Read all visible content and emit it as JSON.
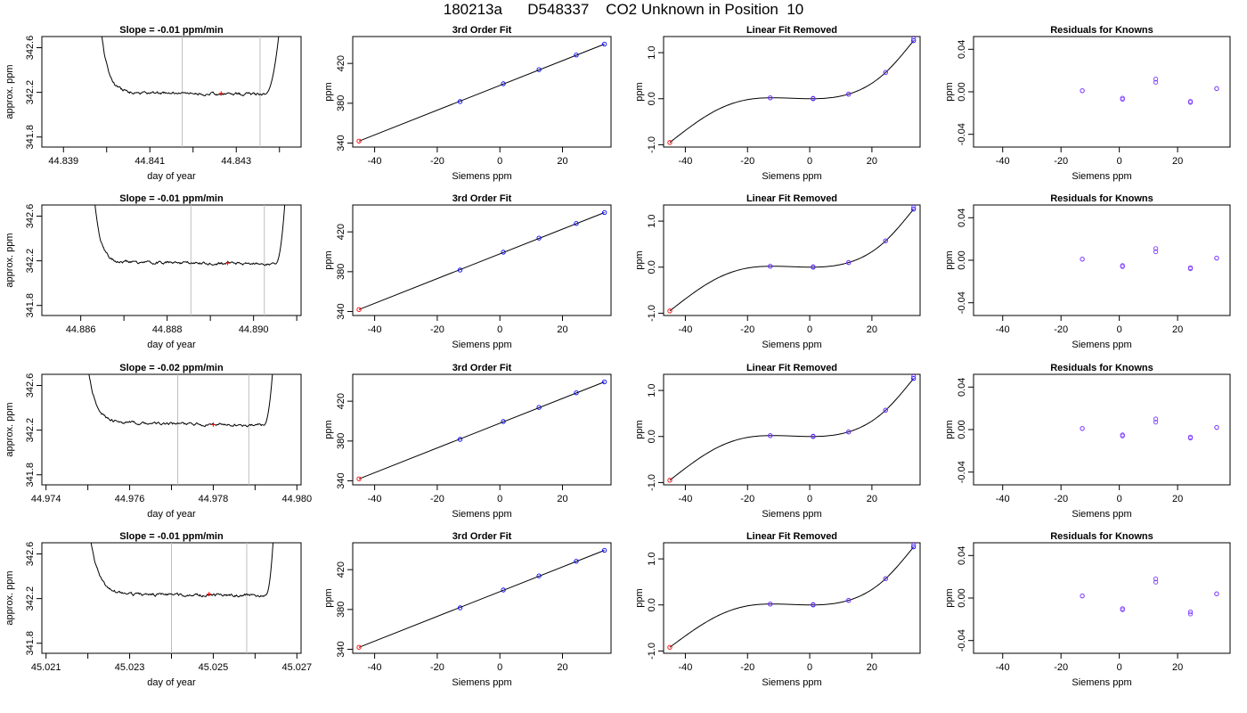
{
  "page_title": "180213a      D548337    CO2 Unknown in Position  10",
  "colors": {
    "trace": "#000000",
    "known_points": "#0000ff",
    "unknown_point": "#ff0000",
    "residual_points": "#7f3fff",
    "window_lines": "#bebebe"
  },
  "chart_data": [
    {
      "type": "line",
      "panel": "time-series",
      "row": 1,
      "title": "Slope =  -0.01  ppm/min",
      "xlabel": "day of year",
      "ylabel": "approx. ppm",
      "xlim": [
        44.8385,
        44.8445
      ],
      "ylim": [
        341.71,
        342.7
      ],
      "xticks": [
        44.839,
        44.841,
        44.843
      ],
      "xticks_minor": [
        44.84,
        44.842,
        44.844
      ],
      "xtick_decimals": 3,
      "yticks": [
        341.8,
        342.2,
        342.6
      ],
      "ytick_decimals": 1,
      "grid": false,
      "series": [
        {
          "start_x": 44.8398,
          "end_x": 44.8441,
          "baseline": 342.2,
          "start_level": 343.1,
          "decay_x": 44.8403,
          "end_level": 342.18,
          "rise_start_x": 44.84365,
          "end_peak": 343.2
        }
      ],
      "window": [
        44.84175,
        44.84355
      ],
      "unknown_point": {
        "x": 44.84265,
        "y": 342.19
      }
    },
    {
      "type": "scatter",
      "panel": "fit",
      "row": 1,
      "title": "3rd Order Fit",
      "xlabel": "Siemens ppm",
      "ylabel": "ppm",
      "xlim": [
        -47.0,
        35.5
      ],
      "ylim": [
        336.0,
        447.0
      ],
      "xticks": [
        -40,
        -20,
        0,
        20
      ],
      "yticks": [
        340,
        380,
        420
      ],
      "known_x": [
        -12.7,
        1.1,
        12.5,
        24.4,
        33.4
      ],
      "known_y": [
        381.7,
        399.6,
        413.8,
        428.4,
        439.4
      ],
      "unknown_point": {
        "x": -45.0,
        "y": 342.0
      },
      "fit_line": {
        "x": [
          -45.0,
          33.4
        ],
        "y": [
          342.0,
          439.4
        ]
      }
    },
    {
      "type": "scatter",
      "panel": "linear-removed",
      "row": 1,
      "title": "Linear Fit Removed",
      "xlabel": "Siemens ppm",
      "ylabel": "ppm",
      "xlim": [
        -47.0,
        35.5
      ],
      "ylim": [
        -1.05,
        1.35
      ],
      "xticks": [
        -40,
        -20,
        0,
        20
      ],
      "yticks": [
        -1.0,
        0.0,
        1.0
      ],
      "ytick_decimals": 1,
      "known_x": [
        -12.7,
        1.1,
        12.5,
        24.4,
        33.4
      ],
      "known_y": [
        0.02,
        0.0,
        0.1,
        0.57,
        1.26
      ],
      "known_y_alt": [
        0.02,
        0.01,
        0.1,
        0.57,
        1.3
      ],
      "unknown_point": {
        "x": -45.0,
        "y": -0.95
      },
      "curve_knots": {
        "x": [
          -45.0,
          -30.0,
          -20.0,
          -12.7,
          1.1,
          12.5,
          24.4,
          33.4
        ],
        "y": [
          -0.95,
          -0.25,
          -0.02,
          0.02,
          0.0,
          0.1,
          0.57,
          1.26
        ]
      }
    },
    {
      "type": "scatter",
      "panel": "residuals",
      "row": 1,
      "title": "Residuals for Knowns",
      "xlabel": "Siemens ppm",
      "ylabel": "ppm",
      "xlim": [
        -50.0,
        38.0
      ],
      "ylim": [
        -0.052,
        0.052
      ],
      "xticks": [
        -40,
        -20,
        0,
        20
      ],
      "yticks": [
        -0.04,
        0.0,
        0.04
      ],
      "ytick_decimals": 2,
      "x": [
        -12.7,
        1.1,
        12.5,
        24.4,
        33.4
      ],
      "y": [
        0.001,
        -0.007,
        0.009,
        -0.01,
        0.003
      ],
      "y_alt": [
        0.001,
        -0.006,
        0.012,
        -0.009,
        0.003
      ]
    },
    {
      "type": "line",
      "panel": "time-series",
      "row": 2,
      "title": "Slope =  -0.01  ppm/min",
      "xlabel": "day of year",
      "ylabel": "approx. ppm",
      "xlim": [
        44.8851,
        44.8911
      ],
      "ylim": [
        341.71,
        342.7
      ],
      "xticks": [
        44.886,
        44.888,
        44.89
      ],
      "xticks_minor": [
        44.887,
        44.889,
        44.891
      ],
      "xtick_decimals": 3,
      "yticks": [
        341.8,
        342.2,
        342.6
      ],
      "ytick_decimals": 1,
      "grid": false,
      "series": [
        {
          "start_x": 44.88625,
          "end_x": 44.8908,
          "baseline": 342.19,
          "start_level": 343.1,
          "decay_x": 44.8867,
          "end_level": 342.17,
          "rise_start_x": 44.8905,
          "end_peak": 343.2
        }
      ],
      "window": [
        44.88855,
        44.89025
      ],
      "unknown_point": {
        "x": 44.8894,
        "y": 342.18
      }
    },
    {
      "type": "scatter",
      "panel": "fit",
      "row": 2,
      "title": "3rd Order Fit",
      "xlabel": "Siemens ppm",
      "ylabel": "ppm",
      "xlim": [
        -47.0,
        35.5
      ],
      "ylim": [
        336.0,
        447.0
      ],
      "xticks": [
        -40,
        -20,
        0,
        20
      ],
      "yticks": [
        340,
        380,
        420
      ],
      "known_x": [
        -12.7,
        1.1,
        12.5,
        24.4,
        33.4
      ],
      "known_y": [
        381.7,
        399.6,
        413.8,
        428.4,
        439.4
      ],
      "unknown_point": {
        "x": -45.0,
        "y": 342.0
      },
      "fit_line": {
        "x": [
          -45.0,
          33.4
        ],
        "y": [
          342.0,
          439.4
        ]
      }
    },
    {
      "type": "scatter",
      "panel": "linear-removed",
      "row": 2,
      "title": "Linear Fit Removed",
      "xlabel": "Siemens ppm",
      "ylabel": "ppm",
      "xlim": [
        -47.0,
        35.5
      ],
      "ylim": [
        -1.05,
        1.35
      ],
      "xticks": [
        -40,
        -20,
        0,
        20
      ],
      "yticks": [
        -1.0,
        0.0,
        1.0
      ],
      "ytick_decimals": 1,
      "known_x": [
        -12.7,
        1.1,
        12.5,
        24.4,
        33.4
      ],
      "known_y": [
        0.02,
        0.0,
        0.1,
        0.57,
        1.26
      ],
      "known_y_alt": [
        0.02,
        0.01,
        0.1,
        0.57,
        1.3
      ],
      "unknown_point": {
        "x": -45.0,
        "y": -0.95
      },
      "curve_knots": {
        "x": [
          -45.0,
          -30.0,
          -20.0,
          -12.7,
          1.1,
          12.5,
          24.4,
          33.4
        ],
        "y": [
          -0.95,
          -0.25,
          -0.02,
          0.02,
          0.0,
          0.1,
          0.57,
          1.26
        ]
      }
    },
    {
      "type": "scatter",
      "panel": "residuals",
      "row": 2,
      "title": "Residuals for Knowns",
      "xlabel": "Siemens ppm",
      "ylabel": "ppm",
      "xlim": [
        -50.0,
        38.0
      ],
      "ylim": [
        -0.052,
        0.052
      ],
      "xticks": [
        -40,
        -20,
        0,
        20
      ],
      "yticks": [
        -0.04,
        0.0,
        0.04
      ],
      "ytick_decimals": 2,
      "x": [
        -12.7,
        1.1,
        12.5,
        24.4,
        33.4
      ],
      "y": [
        0.001,
        -0.006,
        0.008,
        -0.007,
        0.002
      ],
      "y_alt": [
        0.001,
        -0.005,
        0.011,
        -0.008,
        0.002
      ]
    },
    {
      "type": "line",
      "panel": "time-series",
      "row": 3,
      "title": "Slope =  -0.02  ppm/min",
      "xlabel": "day of year",
      "ylabel": "approx. ppm",
      "xlim": [
        44.9739,
        44.9801
      ],
      "ylim": [
        341.71,
        342.7
      ],
      "xticks": [
        44.974,
        44.976,
        44.978,
        44.98
      ],
      "xticks_minor": [
        44.975,
        44.977,
        44.979
      ],
      "xtick_decimals": 3,
      "yticks": [
        341.8,
        342.2,
        342.6
      ],
      "ytick_decimals": 1,
      "grid": false,
      "series": [
        {
          "start_x": 44.9749,
          "end_x": 44.9795,
          "baseline": 342.27,
          "start_level": 343.1,
          "decay_x": 44.9755,
          "end_level": 342.24,
          "rise_start_x": 44.9792,
          "end_peak": 343.2
        }
      ],
      "window": [
        44.97715,
        44.97885
      ],
      "unknown_point": {
        "x": 44.978,
        "y": 342.25
      }
    },
    {
      "type": "scatter",
      "panel": "fit",
      "row": 3,
      "title": "3rd Order Fit",
      "xlabel": "Siemens ppm",
      "ylabel": "ppm",
      "xlim": [
        -47.0,
        35.5
      ],
      "ylim": [
        336.0,
        447.0
      ],
      "xticks": [
        -40,
        -20,
        0,
        20
      ],
      "yticks": [
        340,
        380,
        420
      ],
      "known_x": [
        -12.7,
        1.1,
        12.5,
        24.4,
        33.4
      ],
      "known_y": [
        381.7,
        399.6,
        413.8,
        428.4,
        439.4
      ],
      "unknown_point": {
        "x": -45.0,
        "y": 342.0
      },
      "fit_line": {
        "x": [
          -45.0,
          33.4
        ],
        "y": [
          342.0,
          439.4
        ]
      }
    },
    {
      "type": "scatter",
      "panel": "linear-removed",
      "row": 3,
      "title": "Linear Fit Removed",
      "xlabel": "Siemens ppm",
      "ylabel": "ppm",
      "xlim": [
        -47.0,
        35.5
      ],
      "ylim": [
        -1.05,
        1.35
      ],
      "xticks": [
        -40,
        -20,
        0,
        20
      ],
      "yticks": [
        -1.0,
        0.0,
        1.0
      ],
      "ytick_decimals": 1,
      "known_x": [
        -12.7,
        1.1,
        12.5,
        24.4,
        33.4
      ],
      "known_y": [
        0.02,
        0.0,
        0.1,
        0.57,
        1.26
      ],
      "known_y_alt": [
        0.02,
        0.01,
        0.1,
        0.57,
        1.3
      ],
      "unknown_point": {
        "x": -45.0,
        "y": -0.95
      },
      "curve_knots": {
        "x": [
          -45.0,
          -30.0,
          -20.0,
          -12.7,
          1.1,
          12.5,
          24.4,
          33.4
        ],
        "y": [
          -0.95,
          -0.25,
          -0.02,
          0.02,
          0.0,
          0.1,
          0.57,
          1.26
        ]
      }
    },
    {
      "type": "scatter",
      "panel": "residuals",
      "row": 3,
      "title": "Residuals for Knowns",
      "xlabel": "Siemens ppm",
      "ylabel": "ppm",
      "xlim": [
        -50.0,
        38.0
      ],
      "ylim": [
        -0.052,
        0.052
      ],
      "xticks": [
        -40,
        -20,
        0,
        20
      ],
      "yticks": [
        -0.04,
        0.0,
        0.04
      ],
      "ytick_decimals": 2,
      "x": [
        -12.7,
        1.1,
        12.5,
        24.4,
        33.4
      ],
      "y": [
        0.001,
        -0.006,
        0.007,
        -0.008,
        0.002
      ],
      "y_alt": [
        0.001,
        -0.005,
        0.01,
        -0.007,
        0.002
      ]
    },
    {
      "type": "line",
      "panel": "time-series",
      "row": 4,
      "title": "Slope =  -0.01  ppm/min",
      "xlabel": "day of year",
      "ylabel": "approx. ppm",
      "xlim": [
        45.0209,
        45.0271
      ],
      "ylim": [
        341.71,
        342.7
      ],
      "xticks": [
        45.021,
        45.023,
        45.025,
        45.027
      ],
      "xticks_minor": [
        45.022,
        45.024,
        45.026
      ],
      "xtick_decimals": 3,
      "yticks": [
        341.8,
        342.2,
        342.6
      ],
      "ytick_decimals": 1,
      "grid": false,
      "series": [
        {
          "start_x": 45.02195,
          "end_x": 45.0265,
          "baseline": 342.24,
          "start_level": 343.1,
          "decay_x": 45.0226,
          "end_level": 342.23,
          "rise_start_x": 45.02625,
          "end_peak": 343.2
        }
      ],
      "window": [
        45.024,
        45.0258
      ],
      "unknown_point": {
        "x": 45.0249,
        "y": 342.24
      }
    },
    {
      "type": "scatter",
      "panel": "fit",
      "row": 4,
      "title": "3rd Order Fit",
      "xlabel": "Siemens ppm",
      "ylabel": "ppm",
      "xlim": [
        -47.0,
        35.5
      ],
      "ylim": [
        336.0,
        447.0
      ],
      "xticks": [
        -40,
        -20,
        0,
        20
      ],
      "yticks": [
        340,
        380,
        420
      ],
      "known_x": [
        -12.7,
        1.1,
        12.5,
        24.4,
        33.4
      ],
      "known_y": [
        381.7,
        399.6,
        413.8,
        428.4,
        439.4
      ],
      "unknown_point": {
        "x": -45.0,
        "y": 342.0
      },
      "fit_line": {
        "x": [
          -45.0,
          33.4
        ],
        "y": [
          342.0,
          439.4
        ]
      }
    },
    {
      "type": "scatter",
      "panel": "linear-removed",
      "row": 4,
      "title": "Linear Fit Removed",
      "xlabel": "Siemens ppm",
      "ylabel": "ppm",
      "xlim": [
        -47.0,
        35.5
      ],
      "ylim": [
        -1.05,
        1.35
      ],
      "xticks": [
        -40,
        -20,
        0,
        20
      ],
      "yticks": [
        -1.0,
        0.0,
        1.0
      ],
      "ytick_decimals": 1,
      "known_x": [
        -12.7,
        1.1,
        12.5,
        24.4,
        33.4
      ],
      "known_y": [
        0.02,
        0.0,
        0.1,
        0.57,
        1.26
      ],
      "known_y_alt": [
        0.02,
        0.01,
        0.1,
        0.57,
        1.3
      ],
      "unknown_point": {
        "x": -45.0,
        "y": -0.92
      },
      "curve_knots": {
        "x": [
          -45.0,
          -30.0,
          -20.0,
          -12.7,
          1.1,
          12.5,
          24.4,
          33.4
        ],
        "y": [
          -0.92,
          -0.25,
          -0.02,
          0.02,
          0.0,
          0.1,
          0.57,
          1.26
        ]
      }
    },
    {
      "type": "scatter",
      "panel": "residuals",
      "row": 4,
      "title": "Residuals for Knowns",
      "xlabel": "Siemens ppm",
      "ylabel": "ppm",
      "xlim": [
        -50.0,
        38.0
      ],
      "ylim": [
        -0.052,
        0.052
      ],
      "xticks": [
        -40,
        -20,
        0,
        20
      ],
      "yticks": [
        -0.04,
        0.0,
        0.04
      ],
      "ytick_decimals": 2,
      "x": [
        -12.7,
        1.1,
        12.5,
        24.4,
        33.4
      ],
      "y": [
        0.002,
        -0.011,
        0.015,
        -0.015,
        0.004
      ],
      "y_alt": [
        0.002,
        -0.01,
        0.018,
        -0.013,
        0.004
      ]
    }
  ]
}
